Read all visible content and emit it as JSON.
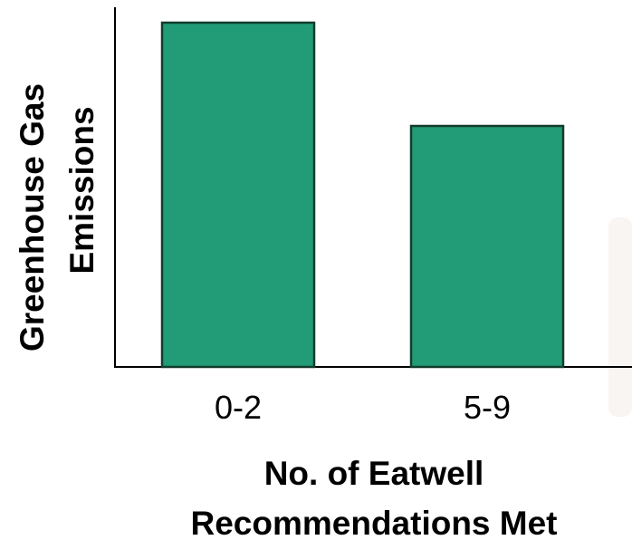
{
  "chart_data": {
    "type": "bar",
    "categories": [
      "0-2",
      "5-9"
    ],
    "values": [
      100,
      70
    ],
    "ylim": [
      0,
      100
    ],
    "xlabel_lines": [
      "No. of Eatwell",
      "Recommendations Met"
    ],
    "ylabel_lines": [
      "Greenhouse Gas",
      "Emissions"
    ],
    "y_ticks_shown": false,
    "grid": false,
    "legend": "none",
    "bar_color": "#229b77",
    "bar_edge_color": "#123d2c"
  }
}
